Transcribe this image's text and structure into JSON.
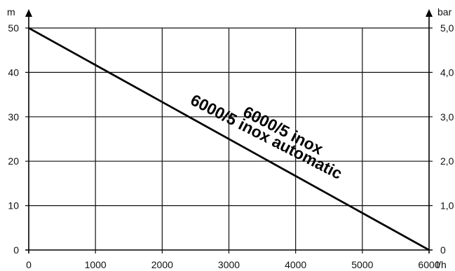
{
  "chart_data": {
    "type": "line",
    "x_unit": "l/h",
    "y_left_unit": "m",
    "y_right_unit": "bar",
    "x_ticks": [
      0,
      1000,
      2000,
      3000,
      4000,
      5000,
      6000
    ],
    "x_tick_labels": [
      "0",
      "1000",
      "2000",
      "3000",
      "4000",
      "5000",
      "6000"
    ],
    "y_left_ticks": [
      0,
      10,
      20,
      30,
      40,
      50
    ],
    "y_left_tick_labels": [
      "0",
      "10",
      "20",
      "30",
      "40",
      "50"
    ],
    "y_right_tick_labels": [
      "0",
      "1,0",
      "2,0",
      "3,0",
      "4,0",
      "5,0"
    ],
    "xlim": [
      0,
      6000
    ],
    "ylim": [
      0,
      50
    ],
    "grid": true,
    "series": [
      {
        "name": "6000/5 inox",
        "x": [
          0,
          6000
        ],
        "y": [
          50,
          0
        ]
      },
      {
        "name": "6000/5 inox automatic",
        "x": [
          0,
          6000
        ],
        "y": [
          50,
          0
        ]
      }
    ]
  }
}
